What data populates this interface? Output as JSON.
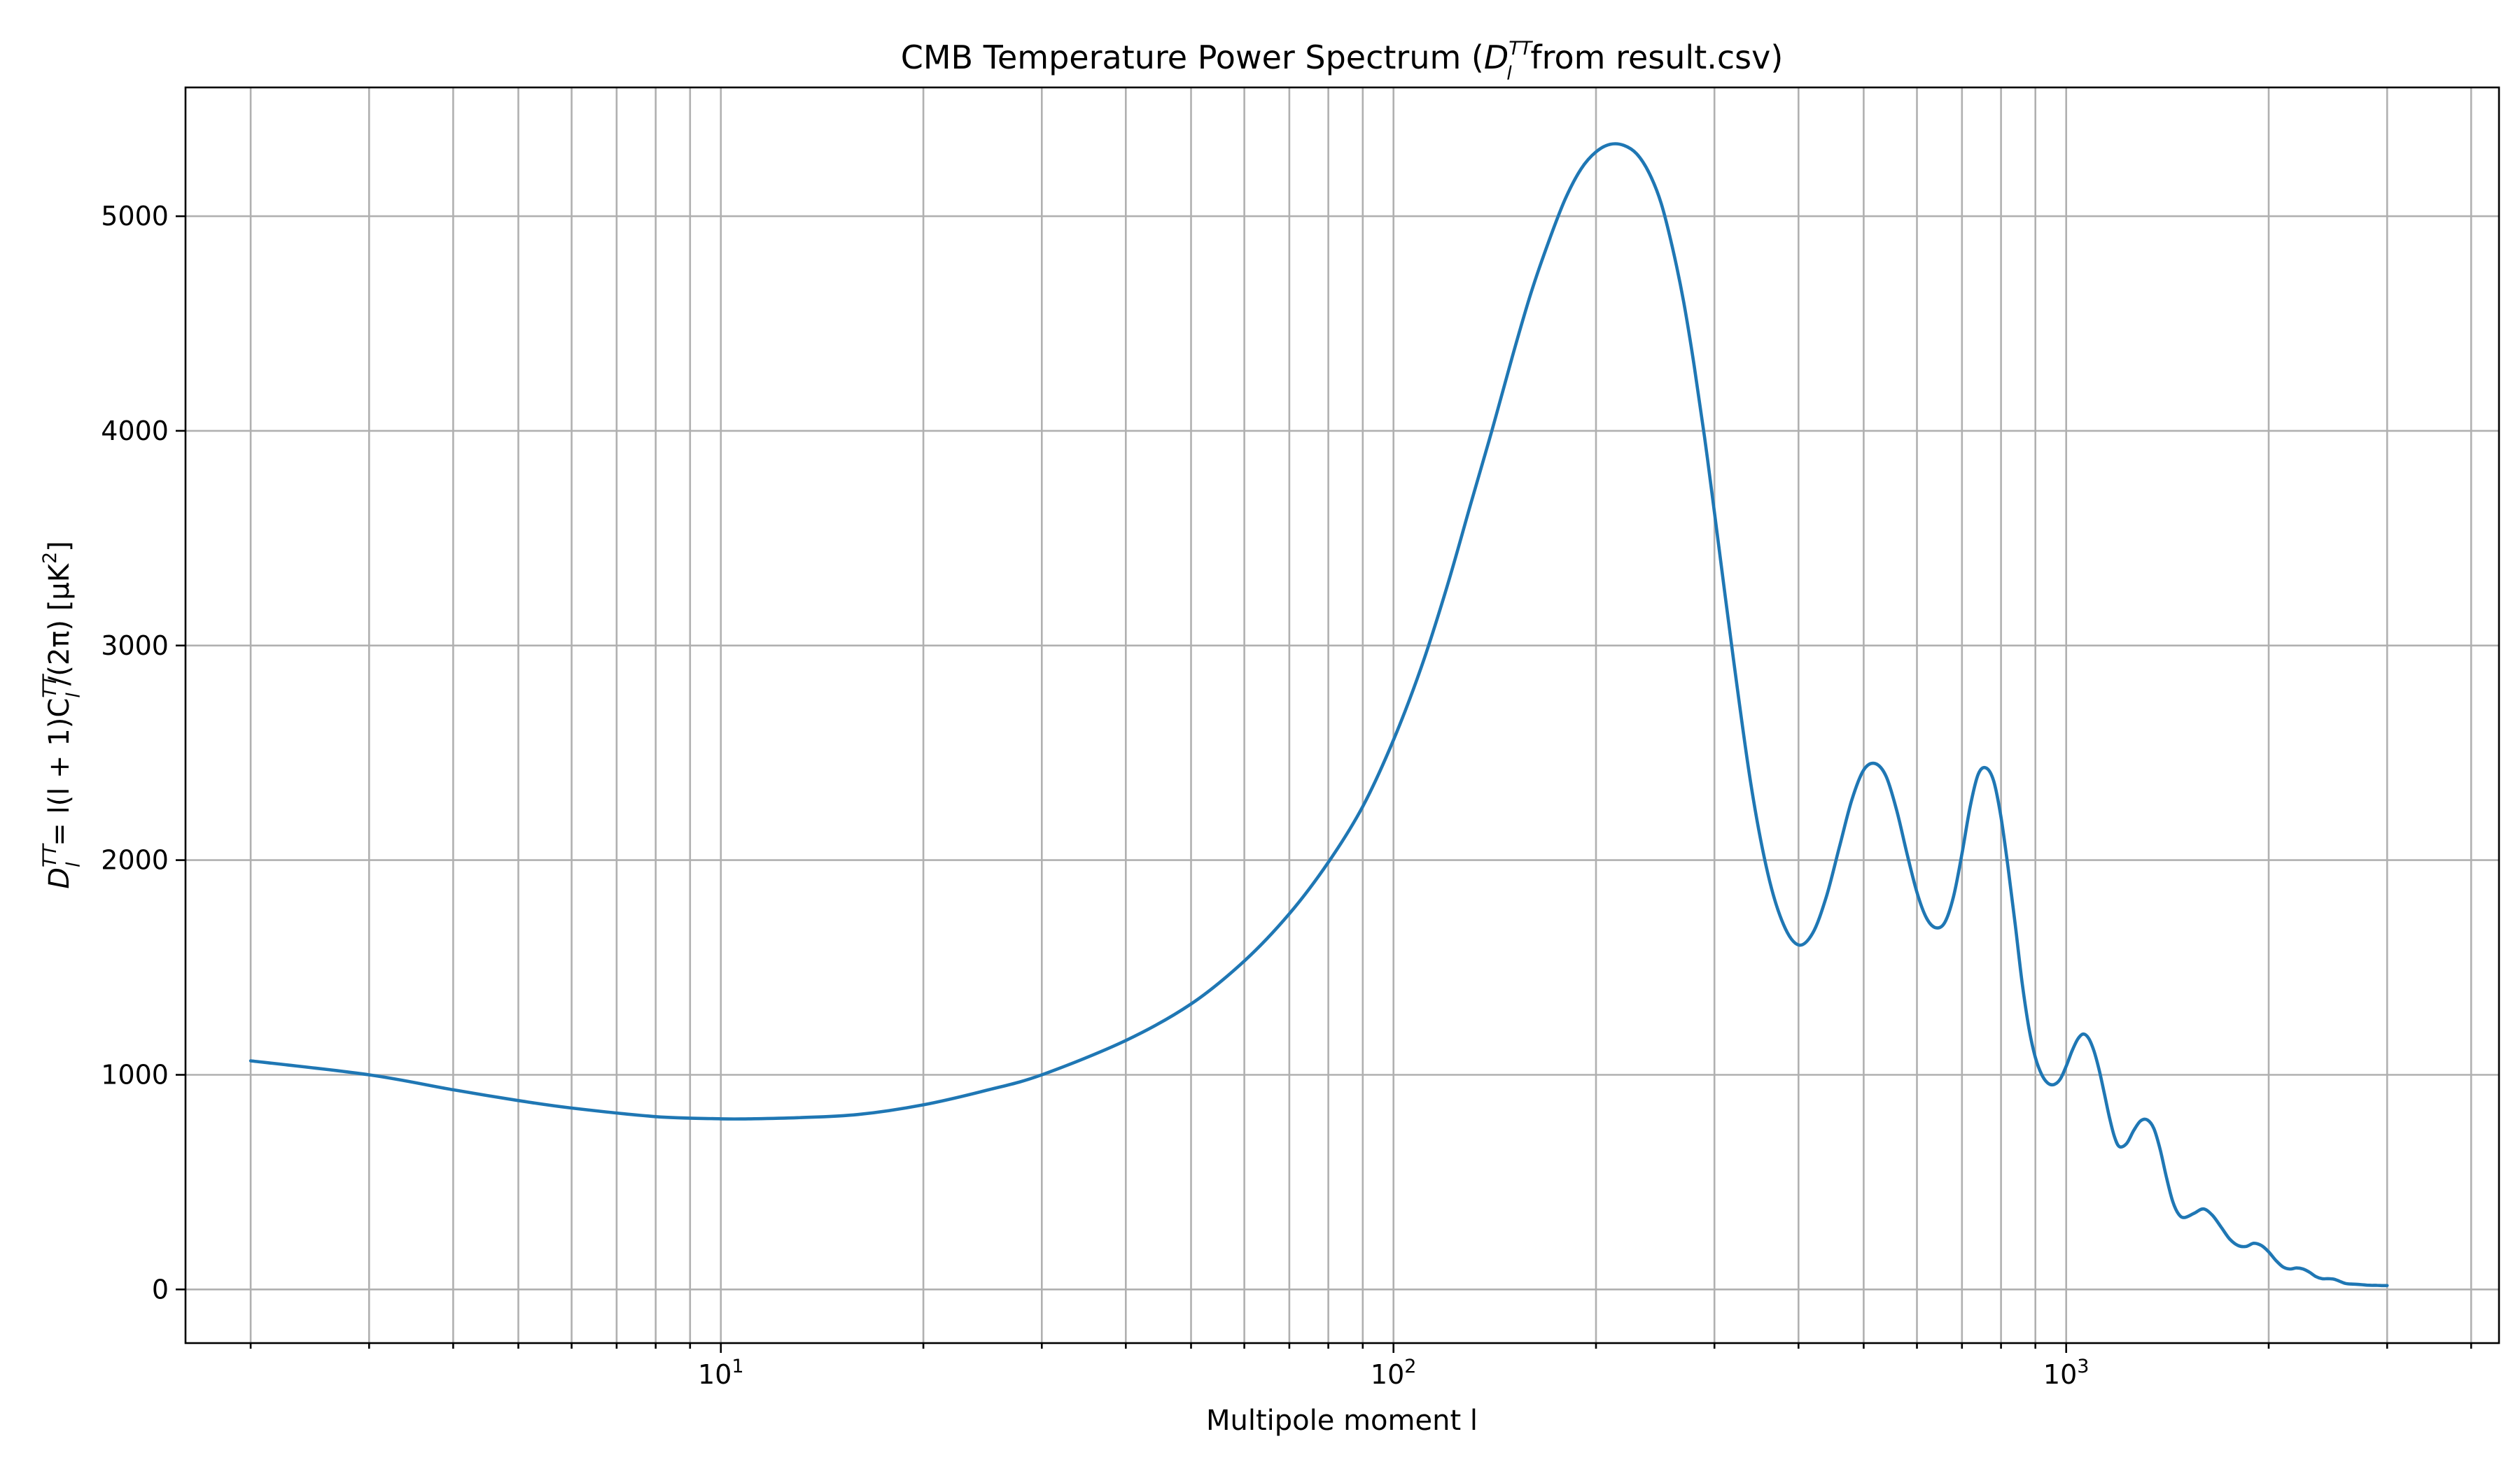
{
  "chart_data": {
    "type": "line",
    "title": "CMB Temperature Power Spectrum (D_l^TT from result.csv)",
    "title_parts": {
      "prefix": "CMB Temperature Power Spectrum (",
      "symbol": "D",
      "subscript": "l",
      "superscript": "TT",
      "suffix": " from result.csv)"
    },
    "xlabel": "Multipole moment l",
    "ylabel": "D_l^TT = l(l+1)C_l^TT/(2π)   [μK^2]",
    "ylabel_parts": {
      "lhs_symbol": "D",
      "lhs_sub": "l",
      "lhs_sup": "TT",
      "eq": " = l(l + 1)C",
      "c_sub": "l",
      "c_sup": "TT",
      "tail": "/(2π)   [μK",
      "unit_sup": "2",
      "close": "]"
    },
    "x_scale": "log",
    "xlim": [
      1.6,
      4400
    ],
    "ylim": [
      -250,
      5600
    ],
    "x_major_ticks": [
      {
        "value": 10,
        "base": "10",
        "exp": "1"
      },
      {
        "value": 100,
        "base": "10",
        "exp": "2"
      },
      {
        "value": 1000,
        "base": "10",
        "exp": "3"
      }
    ],
    "x_minor_ticks": [
      2,
      3,
      4,
      5,
      6,
      7,
      8,
      9,
      20,
      30,
      40,
      50,
      60,
      70,
      80,
      90,
      200,
      300,
      400,
      500,
      600,
      700,
      800,
      900,
      2000,
      3000,
      4000
    ],
    "y_ticks": [
      {
        "value": 0,
        "label": "0"
      },
      {
        "value": 1000,
        "label": "1000"
      },
      {
        "value": 2000,
        "label": "2000"
      },
      {
        "value": 3000,
        "label": "3000"
      },
      {
        "value": 4000,
        "label": "4000"
      },
      {
        "value": 5000,
        "label": "5000"
      }
    ],
    "grid": true,
    "series": [
      {
        "color": "#1f77b4",
        "x": [
          2,
          3,
          4,
          5,
          6,
          8,
          10,
          11,
          13,
          16,
          20,
          25,
          30,
          40,
          50,
          60,
          70,
          80,
          90,
          100,
          110,
          120,
          130,
          140,
          150,
          160,
          170,
          180,
          190,
          200,
          210,
          220,
          230,
          240,
          250,
          260,
          270,
          280,
          290,
          300,
          320,
          340,
          360,
          380,
          400,
          420,
          440,
          460,
          480,
          500,
          520,
          540,
          560,
          580,
          600,
          620,
          640,
          660,
          680,
          700,
          720,
          740,
          760,
          780,
          800,
          820,
          840,
          860,
          880,
          900,
          920,
          940,
          960,
          980,
          1000,
          1020,
          1040,
          1060,
          1080,
          1100,
          1120,
          1140,
          1160,
          1180,
          1200,
          1230,
          1260,
          1290,
          1320,
          1350,
          1380,
          1410,
          1440,
          1470,
          1500,
          1550,
          1600,
          1650,
          1700,
          1750,
          1800,
          1850,
          1900,
          1950,
          2000,
          2050,
          2100,
          2150,
          2200,
          2250,
          2300,
          2350,
          2400,
          2450,
          2500,
          2550,
          2600,
          2650,
          2700,
          2750,
          2800,
          2850,
          2900,
          2950,
          3000
        ],
        "y": [
          1065,
          1000,
          930,
          880,
          845,
          805,
          795,
          795,
          800,
          815,
          860,
          930,
          1000,
          1160,
          1330,
          1530,
          1750,
          1990,
          2250,
          2560,
          2900,
          3270,
          3650,
          4000,
          4340,
          4640,
          4880,
          5080,
          5220,
          5300,
          5335,
          5330,
          5290,
          5200,
          5060,
          4850,
          4600,
          4300,
          3970,
          3620,
          2940,
          2350,
          1940,
          1700,
          1605,
          1660,
          1830,
          2060,
          2280,
          2420,
          2450,
          2390,
          2230,
          2030,
          1850,
          1730,
          1685,
          1710,
          1830,
          2030,
          2250,
          2400,
          2430,
          2370,
          2200,
          1960,
          1700,
          1430,
          1220,
          1080,
          1000,
          960,
          955,
          980,
          1040,
          1110,
          1165,
          1190,
          1170,
          1110,
          1020,
          910,
          800,
          710,
          665,
          680,
          740,
          785,
          790,
          750,
          650,
          520,
          410,
          350,
          335,
          355,
          375,
          345,
          290,
          235,
          205,
          200,
          215,
          205,
          175,
          135,
          105,
          95,
          100,
          95,
          80,
          60,
          50,
          50,
          48,
          38,
          28,
          25,
          24,
          22,
          20,
          19,
          19,
          18,
          18
        ]
      }
    ]
  }
}
